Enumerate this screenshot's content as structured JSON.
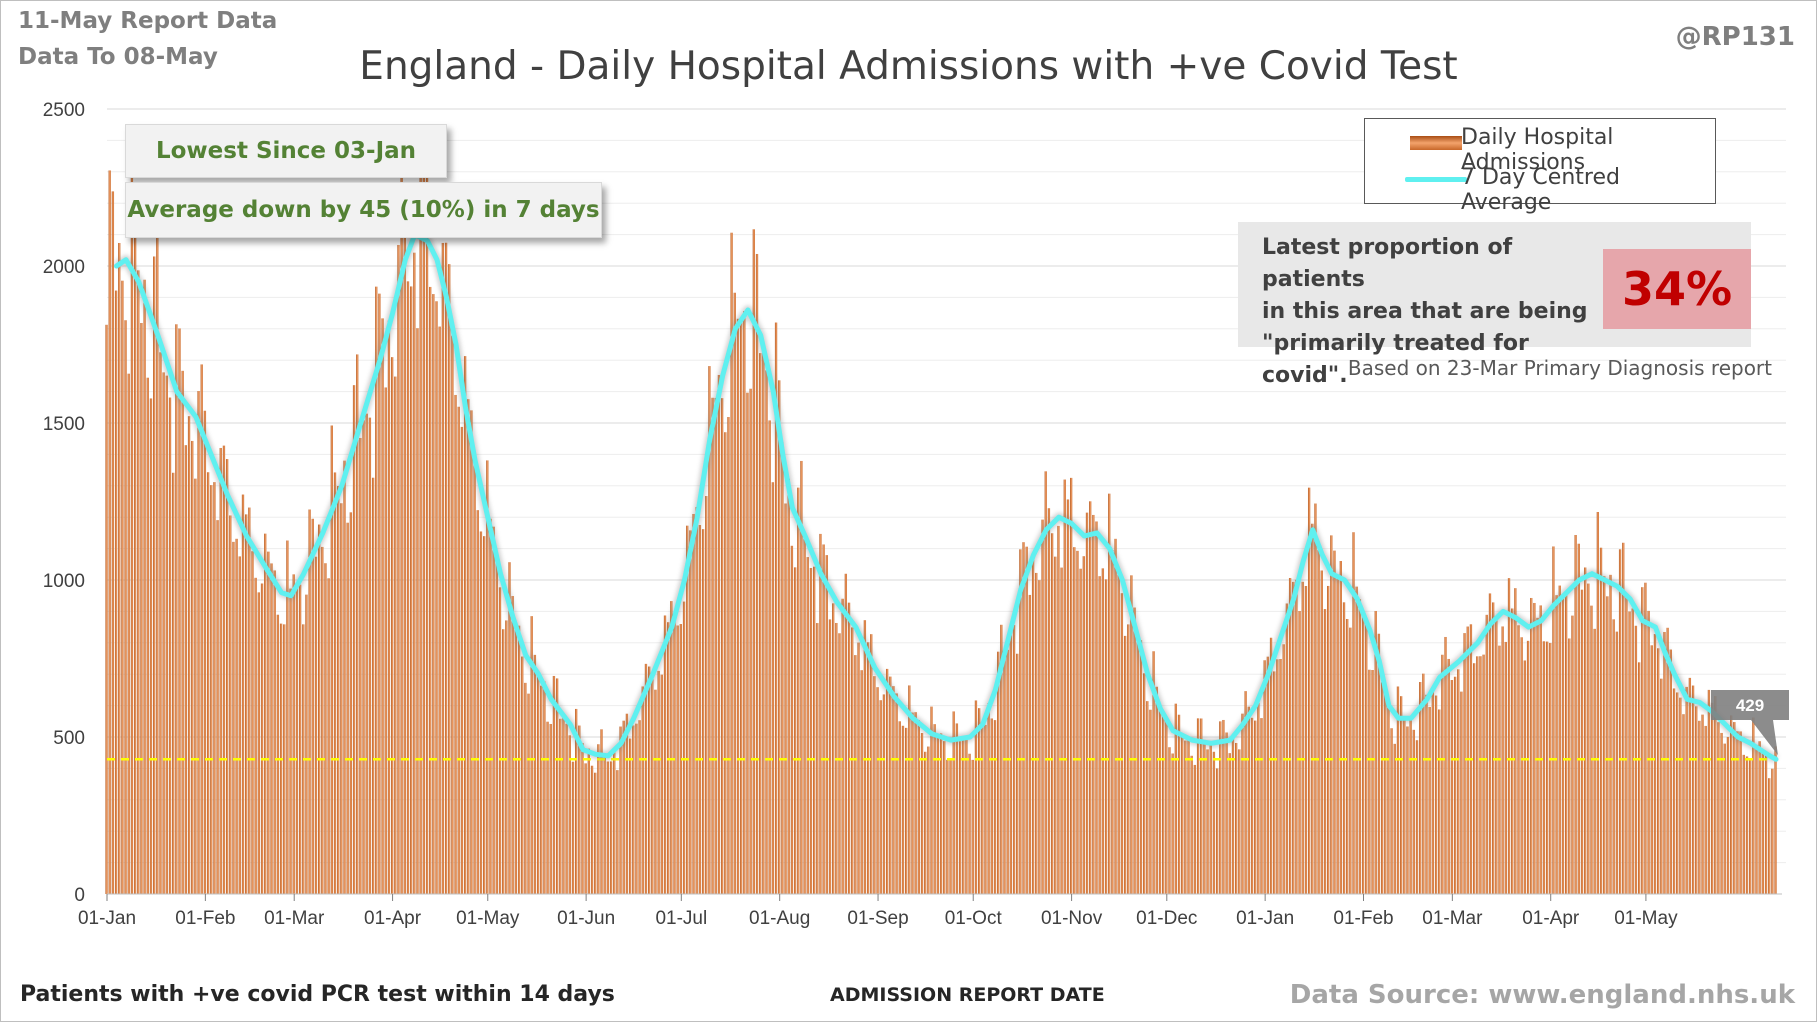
{
  "header": {
    "report_date": "11-May Report Data",
    "data_to": "Data To 08-May",
    "handle": "@RP131",
    "title": "England - Daily Hospital Admissions with +ve Covid Test"
  },
  "footer": {
    "left": "Patients with +ve covid PCR test within 14 days",
    "center": "ADMISSION  REPORT DATE",
    "right": "Data Source: www.england.nhs.uk"
  },
  "callouts": {
    "lowest": "Lowest Since 03-Jan",
    "average": "Average down by 45 (10%) in 7 days",
    "latest_label": "429"
  },
  "legend": {
    "bar_label": "Daily Hospital Admissions",
    "line_label": "7 Day Centred Average"
  },
  "info": {
    "text": "Latest proportion of patients\nin this area that are being\n\"primarily treated for covid\".",
    "percent": "34%",
    "note": "Based on 23-Mar Primary Diagnosis report"
  },
  "colors": {
    "bar_dark": "#a94d14",
    "bar_light": "#f3a36c",
    "average_line": "#5ff0f0",
    "reference_line": "#ffff00",
    "percent_text": "#c00000",
    "percent_bg": "#e6a6ab",
    "callout_text": "#548235"
  },
  "chart_data": {
    "type": "bar",
    "title": "England - Daily Hospital Admissions with +ve Covid Test",
    "xlabel": "ADMISSION  REPORT DATE",
    "ylabel": "",
    "ylim": [
      0,
      2500
    ],
    "yticks": [
      0,
      500,
      1000,
      1500,
      2000,
      2500
    ],
    "grid": true,
    "legend_position": "top-right",
    "x_start": "01-Jan",
    "x_end": "08-May",
    "x_tick_labels": [
      "01-Jan",
      "01-Feb",
      "01-Mar",
      "01-Apr",
      "01-May",
      "01-Jun",
      "01-Jul",
      "01-Aug",
      "01-Sep",
      "01-Oct",
      "01-Nov",
      "01-Dec",
      "01-Jan",
      "01-Feb",
      "01-Mar",
      "01-Apr",
      "01-May"
    ],
    "x_tick_days": [
      0,
      31,
      59,
      90,
      120,
      151,
      181,
      212,
      243,
      273,
      304,
      334,
      365,
      396,
      424,
      455,
      485
    ],
    "reference_line": {
      "value": 429,
      "label": "429"
    },
    "series": [
      {
        "name": "7 Day Centred Average",
        "kind": "line",
        "points": [
          [
            3,
            2000
          ],
          [
            6,
            2020
          ],
          [
            10,
            1950
          ],
          [
            16,
            1780
          ],
          [
            22,
            1600
          ],
          [
            28,
            1520
          ],
          [
            32,
            1420
          ],
          [
            38,
            1270
          ],
          [
            44,
            1140
          ],
          [
            50,
            1040
          ],
          [
            55,
            960
          ],
          [
            58,
            950
          ],
          [
            62,
            1020
          ],
          [
            68,
            1150
          ],
          [
            74,
            1300
          ],
          [
            80,
            1500
          ],
          [
            86,
            1700
          ],
          [
            90,
            1850
          ],
          [
            94,
            2020
          ],
          [
            97,
            2100
          ],
          [
            101,
            2080
          ],
          [
            104,
            2020
          ],
          [
            107,
            1900
          ],
          [
            110,
            1750
          ],
          [
            113,
            1550
          ],
          [
            116,
            1380
          ],
          [
            120,
            1200
          ],
          [
            124,
            1020
          ],
          [
            128,
            880
          ],
          [
            132,
            760
          ],
          [
            136,
            700
          ],
          [
            140,
            620
          ],
          [
            146,
            540
          ],
          [
            150,
            460
          ],
          [
            154,
            445
          ],
          [
            158,
            440
          ],
          [
            162,
            480
          ],
          [
            166,
            560
          ],
          [
            172,
            700
          ],
          [
            178,
            850
          ],
          [
            182,
            1000
          ],
          [
            186,
            1200
          ],
          [
            190,
            1450
          ],
          [
            194,
            1650
          ],
          [
            198,
            1800
          ],
          [
            202,
            1860
          ],
          [
            206,
            1780
          ],
          [
            210,
            1600
          ],
          [
            213,
            1400
          ],
          [
            216,
            1230
          ],
          [
            220,
            1140
          ],
          [
            225,
            1020
          ],
          [
            230,
            930
          ],
          [
            236,
            850
          ],
          [
            242,
            720
          ],
          [
            248,
            630
          ],
          [
            254,
            560
          ],
          [
            260,
            510
          ],
          [
            266,
            490
          ],
          [
            272,
            500
          ],
          [
            276,
            540
          ],
          [
            280,
            650
          ],
          [
            284,
            810
          ],
          [
            288,
            970
          ],
          [
            292,
            1080
          ],
          [
            296,
            1160
          ],
          [
            300,
            1200
          ],
          [
            304,
            1180
          ],
          [
            308,
            1140
          ],
          [
            312,
            1150
          ],
          [
            316,
            1100
          ],
          [
            320,
            1000
          ],
          [
            324,
            850
          ],
          [
            328,
            700
          ],
          [
            332,
            590
          ],
          [
            336,
            520
          ],
          [
            342,
            490
          ],
          [
            348,
            480
          ],
          [
            354,
            490
          ],
          [
            358,
            540
          ],
          [
            362,
            600
          ],
          [
            366,
            700
          ],
          [
            370,
            820
          ],
          [
            374,
            940
          ],
          [
            377,
            1060
          ],
          [
            380,
            1160
          ],
          [
            383,
            1080
          ],
          [
            386,
            1020
          ],
          [
            390,
            1000
          ],
          [
            394,
            940
          ],
          [
            398,
            840
          ],
          [
            401,
            740
          ],
          [
            404,
            600
          ],
          [
            407,
            560
          ],
          [
            411,
            560
          ],
          [
            416,
            620
          ],
          [
            420,
            690
          ],
          [
            426,
            740
          ],
          [
            432,
            800
          ],
          [
            436,
            860
          ],
          [
            440,
            900
          ],
          [
            444,
            880
          ],
          [
            448,
            850
          ],
          [
            452,
            870
          ],
          [
            456,
            920
          ],
          [
            460,
            960
          ],
          [
            464,
            1000
          ],
          [
            468,
            1020
          ],
          [
            472,
            1000
          ],
          [
            476,
            980
          ],
          [
            480,
            940
          ],
          [
            484,
            870
          ],
          [
            488,
            850
          ],
          [
            491,
            770
          ],
          [
            494,
            700
          ],
          [
            498,
            620
          ],
          [
            502,
            610
          ],
          [
            506,
            580
          ],
          [
            510,
            540
          ],
          [
            514,
            500
          ],
          [
            518,
            480
          ],
          [
            521,
            460
          ],
          [
            524,
            440
          ],
          [
            526,
            429
          ]
        ]
      },
      {
        "name": "Daily Hospital Admissions",
        "kind": "bar",
        "note": "daily bars vary around the 7 day centred average; latest value 429"
      }
    ]
  }
}
